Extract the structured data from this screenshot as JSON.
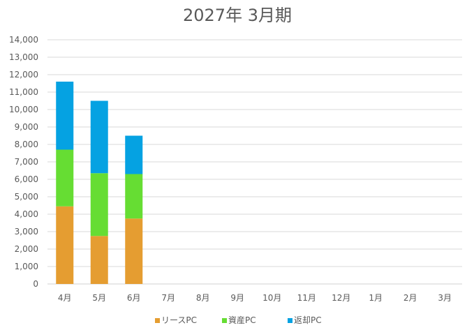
{
  "chart_data": {
    "type": "bar",
    "stacked": true,
    "title": "2027年 3月期",
    "categories": [
      "4月",
      "5月",
      "6月",
      "7月",
      "8月",
      "9月",
      "10月",
      "11月",
      "12月",
      "1月",
      "2月",
      "3月"
    ],
    "series": [
      {
        "name": "リースPC",
        "color": "#E59D31",
        "values": [
          4450,
          2750,
          3750,
          null,
          null,
          null,
          null,
          null,
          null,
          null,
          null,
          null
        ]
      },
      {
        "name": "資産PC",
        "color": "#66DD33",
        "values": [
          3250,
          3600,
          2550,
          null,
          null,
          null,
          null,
          null,
          null,
          null,
          null,
          null
        ]
      },
      {
        "name": "返却PC",
        "color": "#05A2E2",
        "values": [
          3900,
          4150,
          2200,
          null,
          null,
          null,
          null,
          null,
          null,
          null,
          null,
          null
        ]
      }
    ],
    "yticks": [
      "0",
      "1,000",
      "2,000",
      "3,000",
      "4,000",
      "5,000",
      "6,000",
      "7,000",
      "8,000",
      "9,000",
      "10,000",
      "11,000",
      "12,000",
      "13,000",
      "14,000"
    ],
    "ylim": [
      0,
      14000
    ],
    "grid": true,
    "legend": "bottom"
  }
}
